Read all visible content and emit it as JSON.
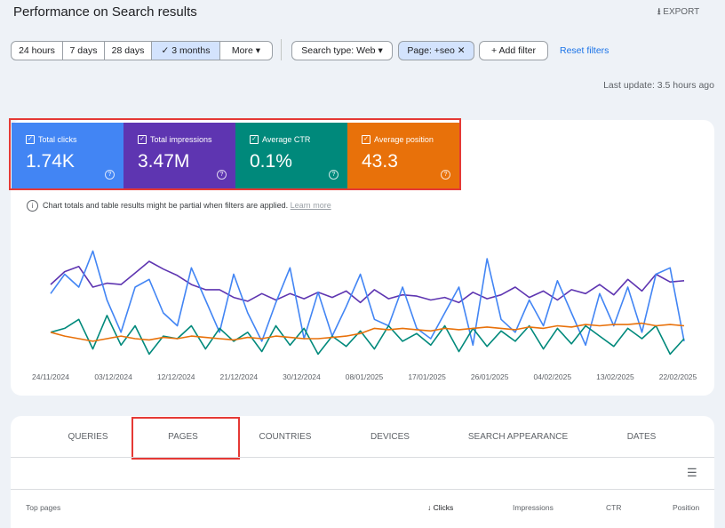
{
  "header": {
    "title": "Performance on Search results",
    "export": "EXPORT"
  },
  "filters": {
    "ranges": [
      "24 hours",
      "7 days",
      "28 days",
      "3 months",
      "More"
    ],
    "search_type": "Search type: Web",
    "page": "Page: +seo",
    "add": "Add filter",
    "reset": "Reset filters"
  },
  "last_update": "Last update: 3.5 hours ago",
  "metrics": [
    {
      "label": "Total clicks",
      "value": "1.74K",
      "color": "#4285f4"
    },
    {
      "label": "Total impressions",
      "value": "3.47M",
      "color": "#5e35b1"
    },
    {
      "label": "Average CTR",
      "value": "0.1%",
      "color": "#00897b"
    },
    {
      "label": "Average position",
      "value": "43.3",
      "color": "#e8710a"
    }
  ],
  "notice": {
    "text": "Chart totals and table results might be partial when filters are applied.",
    "link": "Learn more"
  },
  "chart": {
    "type": "line",
    "ylim": [
      0,
      100
    ],
    "x_ticks": [
      "24/11/2024",
      "03/12/2024",
      "12/12/2024",
      "21/12/2024",
      "30/12/2024",
      "08/01/2025",
      "17/01/2025",
      "26/01/2025",
      "04/02/2025",
      "13/02/2025",
      "22/02/2025"
    ],
    "series": [
      {
        "name": "Total impressions",
        "color": "#5e35b1",
        "values": [
          62,
          72,
          76,
          60,
          63,
          62,
          71,
          80,
          74,
          69,
          62,
          58,
          58,
          52,
          49,
          55,
          50,
          55,
          51,
          56,
          52,
          57,
          48,
          58,
          51,
          54,
          53,
          50,
          52,
          48,
          56,
          51,
          54,
          60,
          52,
          57,
          50,
          58,
          55,
          62,
          54,
          66,
          57,
          70,
          64,
          65
        ]
      },
      {
        "name": "Total clicks",
        "color": "#4285f4",
        "values": [
          55,
          70,
          60,
          88,
          50,
          25,
          60,
          66,
          40,
          30,
          75,
          50,
          25,
          70,
          40,
          18,
          48,
          75,
          20,
          56,
          22,
          45,
          70,
          35,
          30,
          60,
          28,
          20,
          40,
          60,
          15,
          82,
          35,
          25,
          50,
          30,
          65,
          40,
          15,
          55,
          30,
          60,
          25,
          70,
          75,
          18
        ]
      },
      {
        "name": "Average CTR",
        "color": "#00897b",
        "values": [
          25,
          28,
          35,
          12,
          38,
          15,
          30,
          8,
          22,
          20,
          30,
          12,
          28,
          18,
          25,
          10,
          30,
          15,
          28,
          8,
          22,
          14,
          26,
          12,
          30,
          18,
          24,
          15,
          30,
          10,
          28,
          14,
          26,
          18,
          30,
          12,
          28,
          16,
          30,
          22,
          14,
          28,
          20,
          30,
          8,
          20
        ]
      },
      {
        "name": "Average position",
        "color": "#e8710a",
        "values": [
          25,
          22,
          20,
          18,
          20,
          22,
          20,
          19,
          21,
          20,
          22,
          21,
          20,
          19,
          21,
          20,
          22,
          21,
          20,
          20,
          21,
          22,
          24,
          28,
          27,
          28,
          27,
          26,
          28,
          27,
          28,
          29,
          28,
          27,
          29,
          28,
          30,
          29,
          31,
          30,
          31,
          31,
          32,
          30,
          31,
          30
        ]
      }
    ]
  },
  "tabs": [
    "QUERIES",
    "PAGES",
    "COUNTRIES",
    "DEVICES",
    "SEARCH APPEARANCE",
    "DATES"
  ],
  "table": {
    "columns": [
      "Top pages",
      "Clicks",
      "Impressions",
      "CTR",
      "Position"
    ]
  }
}
